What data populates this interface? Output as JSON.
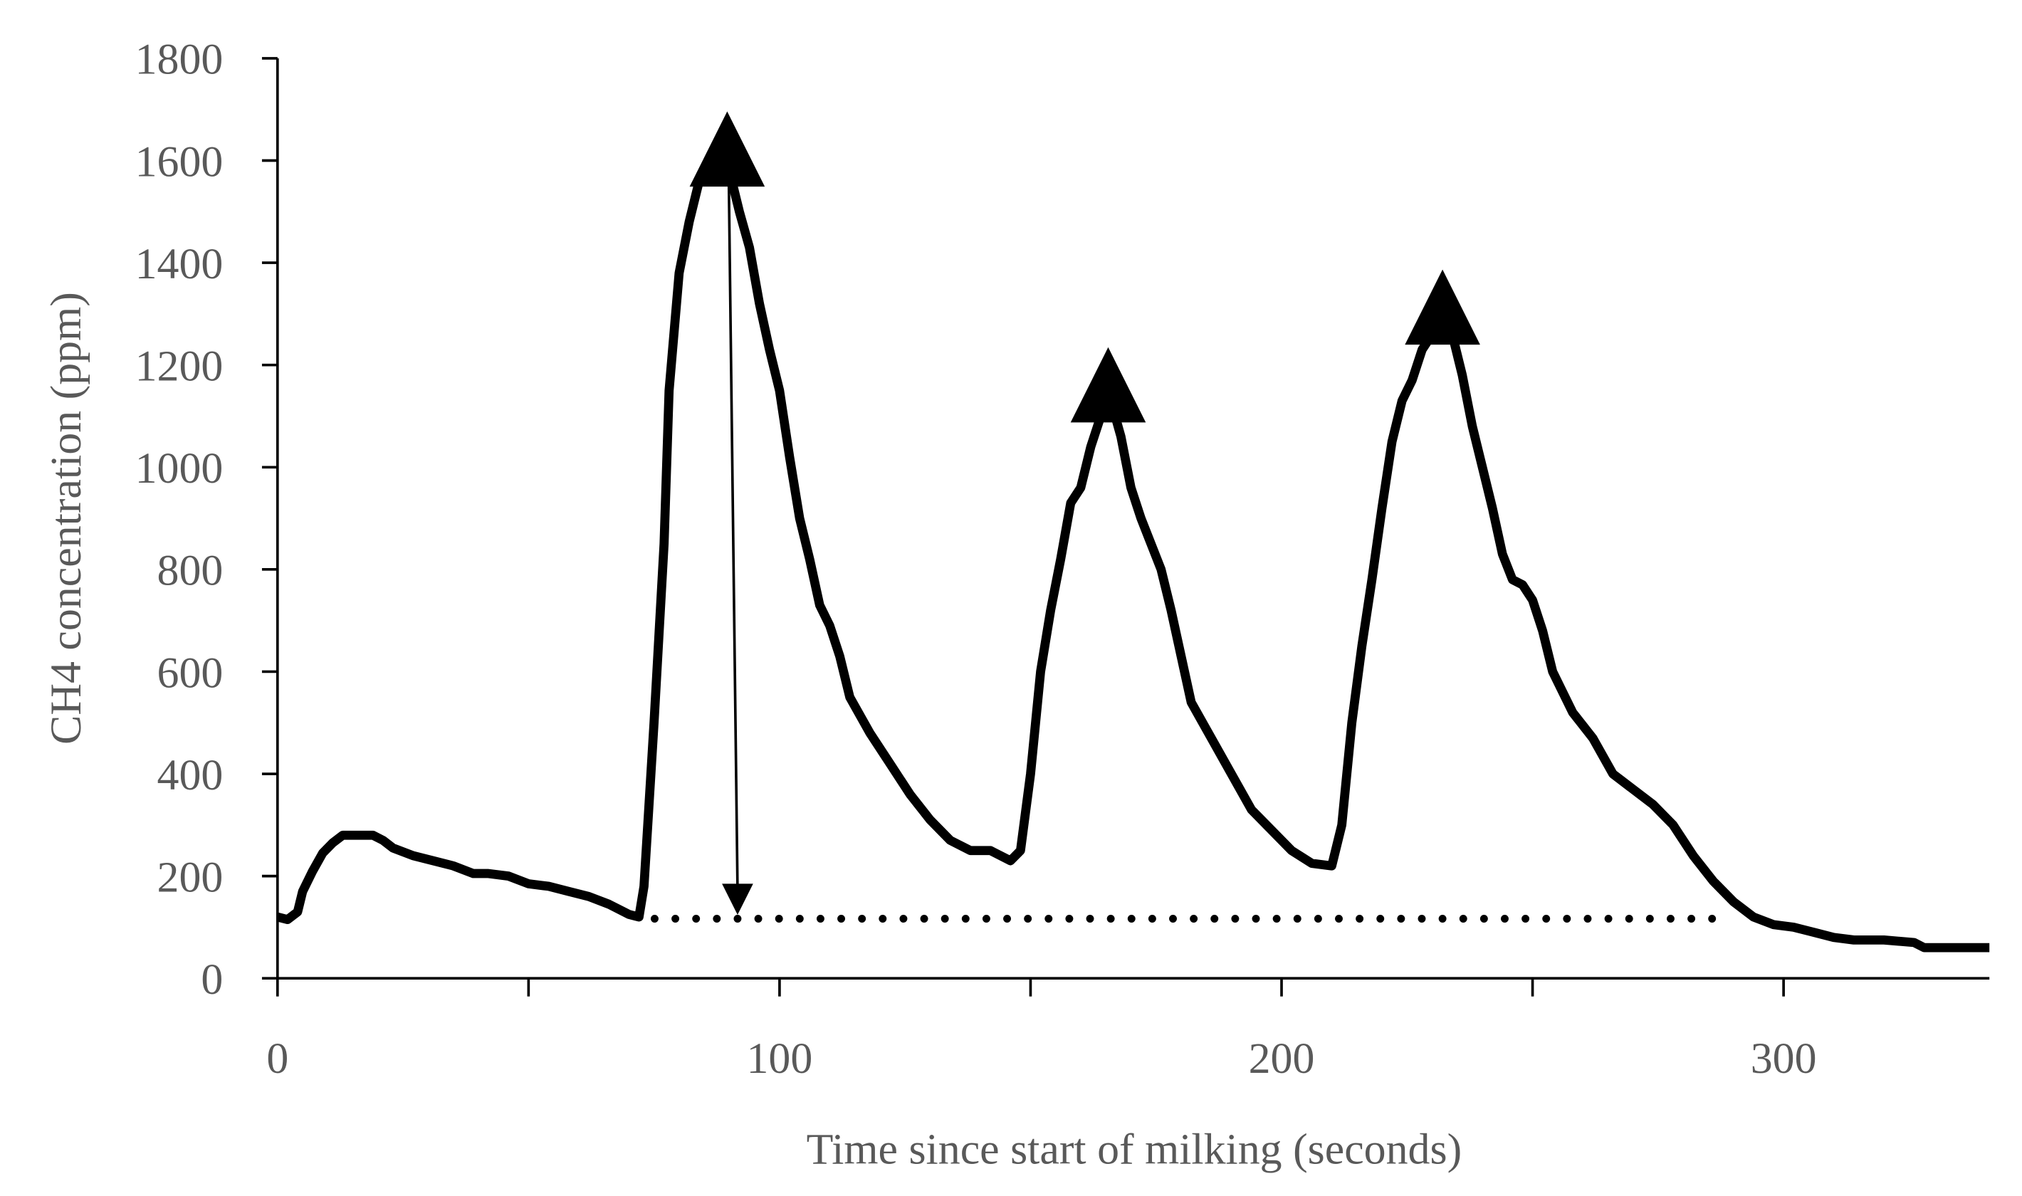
{
  "chart_data": {
    "type": "line",
    "x_label": "Time since start of milking (seconds)",
    "y_label": "CH4 concentration (ppm)",
    "xlim": [
      0,
      341
    ],
    "xticks": [
      0,
      100,
      200,
      300
    ],
    "xminor_ticks": [
      50,
      150,
      250
    ],
    "ylim": [
      0,
      1800
    ],
    "yticks": [
      0,
      200,
      400,
      600,
      800,
      1000,
      1200,
      1400,
      1600,
      1800
    ],
    "series": [
      {
        "color": "#000000",
        "x": [
          0,
          2,
          4,
          5,
          7,
          9,
          11,
          13,
          16,
          19,
          21,
          23,
          27,
          31,
          35,
          39,
          42,
          46,
          50,
          54,
          58,
          62,
          66,
          70,
          72,
          73,
          75,
          77,
          78,
          80,
          82,
          84,
          86,
          88,
          90,
          92,
          94,
          96,
          98,
          100,
          102,
          104,
          106,
          108,
          110,
          112,
          114,
          118,
          122,
          126,
          130,
          134,
          138,
          142,
          146,
          148,
          150,
          152,
          154,
          156,
          158,
          160,
          162,
          164,
          166,
          168,
          170,
          172,
          174,
          176,
          178,
          180,
          182,
          186,
          190,
          194,
          198,
          202,
          206,
          210,
          212,
          214,
          216,
          218,
          220,
          222,
          224,
          226,
          228,
          230,
          234,
          236,
          238,
          240,
          242,
          244,
          246,
          248,
          250,
          252,
          254,
          256,
          258,
          262,
          266,
          270,
          274,
          278,
          282,
          286,
          290,
          294,
          298,
          302,
          306,
          310,
          314,
          320,
          326,
          328,
          341
        ],
        "values": [
          120,
          115,
          130,
          170,
          210,
          245,
          265,
          280,
          280,
          280,
          270,
          255,
          240,
          230,
          220,
          205,
          205,
          200,
          185,
          180,
          170,
          160,
          145,
          125,
          120,
          180,
          500,
          850,
          1150,
          1380,
          1480,
          1560,
          1600,
          1600,
          1580,
          1500,
          1430,
          1320,
          1230,
          1150,
          1020,
          900,
          820,
          730,
          690,
          630,
          550,
          480,
          420,
          360,
          310,
          270,
          250,
          250,
          230,
          250,
          400,
          600,
          720,
          820,
          930,
          960,
          1040,
          1100,
          1130,
          1060,
          960,
          900,
          850,
          800,
          720,
          630,
          540,
          470,
          400,
          330,
          290,
          250,
          225,
          220,
          300,
          500,
          650,
          780,
          920,
          1050,
          1130,
          1170,
          1230,
          1260,
          1260,
          1180,
          1080,
          1000,
          920,
          830,
          780,
          770,
          740,
          680,
          600,
          560,
          520,
          470,
          400,
          370,
          340,
          300,
          240,
          190,
          150,
          120,
          105,
          100,
          90,
          80,
          75,
          75,
          70,
          60,
          60
        ]
      }
    ]
  }
}
